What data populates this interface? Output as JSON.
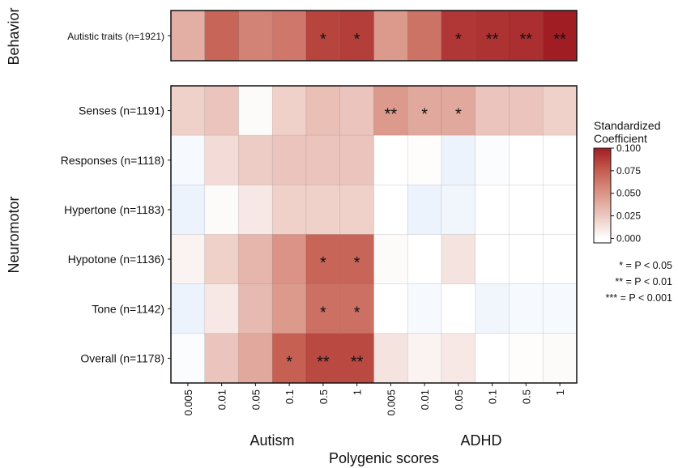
{
  "chart_data": {
    "type": "heatmap",
    "xlabel": "Polygenic scores",
    "groups": [
      "Autism",
      "ADHD"
    ],
    "x_ticks": [
      "0.005",
      "0.01",
      "0.05",
      "0.1",
      "0.5",
      "1",
      "0.005",
      "0.01",
      "0.05",
      "0.1",
      "0.5",
      "1"
    ],
    "panels": [
      {
        "name": "Behavior",
        "rows": [
          {
            "label": "Autistic traits (n=1921)",
            "values": [
              0.035,
              0.068,
              0.055,
              0.06,
              0.082,
              0.085,
              0.045,
              0.062,
              0.088,
              0.09,
              0.092,
              0.1
            ],
            "stars": [
              "",
              "",
              "",
              "",
              "*",
              "*",
              "",
              "",
              "*",
              "**",
              "**",
              "**"
            ]
          }
        ]
      },
      {
        "name": "Neuromotor",
        "rows": [
          {
            "label": "Senses (n=1191)",
            "values": [
              0.02,
              0.025,
              0.002,
              0.02,
              0.028,
              0.025,
              0.045,
              0.038,
              0.038,
              0.025,
              0.025,
              0.02
            ],
            "stars": [
              "",
              "",
              "",
              "",
              "",
              "",
              "**",
              "*",
              "*",
              "",
              "",
              ""
            ]
          },
          {
            "label": "Responses (n=1118)",
            "values": [
              -0.002,
              0.015,
              0.022,
              0.025,
              0.025,
              0.025,
              0.0,
              0.001,
              -0.004,
              -0.001,
              0.0,
              0.0
            ],
            "stars": [
              "",
              "",
              "",
              "",
              "",
              "",
              "",
              "",
              "",
              "",
              "",
              ""
            ]
          },
          {
            "label": "Hypertone (n=1183)",
            "values": [
              -0.004,
              0.002,
              0.01,
              0.02,
              0.02,
              0.02,
              0.0,
              -0.004,
              -0.003,
              0.0,
              0.0,
              0.0
            ],
            "stars": [
              "",
              "",
              "",
              "",
              "",
              "",
              "",
              "",
              "",
              "",
              "",
              ""
            ]
          },
          {
            "label": "Hypotone (n=1136)",
            "values": [
              0.005,
              0.02,
              0.032,
              0.048,
              0.068,
              0.068,
              0.002,
              0.0,
              0.012,
              0.0,
              0.0,
              0.0
            ],
            "stars": [
              "",
              "",
              "",
              "",
              "*",
              "*",
              "",
              "",
              "",
              "",
              "",
              ""
            ]
          },
          {
            "label": "Tone (n=1142)",
            "values": [
              -0.004,
              0.01,
              0.03,
              0.045,
              0.063,
              0.063,
              0.0,
              -0.002,
              0.0,
              -0.003,
              -0.002,
              -0.002
            ],
            "stars": [
              "",
              "",
              "",
              "",
              "*",
              "*",
              "",
              "",
              "",
              "",
              "",
              ""
            ]
          },
          {
            "label": "Overall (n=1178)",
            "values": [
              -0.001,
              0.025,
              0.038,
              0.07,
              0.08,
              0.08,
              0.012,
              0.005,
              0.01,
              0.0,
              0.001,
              0.002
            ],
            "stars": [
              "",
              "",
              "",
              "*",
              "**",
              "**",
              "",
              "",
              "",
              "",
              "",
              ""
            ]
          }
        ]
      }
    ],
    "legend": {
      "title": [
        "Standardized",
        "Coefficient"
      ],
      "ticks": [
        "0.100",
        "0.075",
        "0.050",
        "0.025",
        "0.000"
      ],
      "tick_values": [
        0.1,
        0.075,
        0.05,
        0.025,
        0.0
      ],
      "range": [
        -0.005,
        0.1
      ],
      "colors": {
        "low": "#ffffff",
        "high": "#a11d24"
      }
    },
    "significance": [
      "* = P < 0.05",
      "** = P < 0.01",
      "*** = P < 0.001"
    ]
  }
}
